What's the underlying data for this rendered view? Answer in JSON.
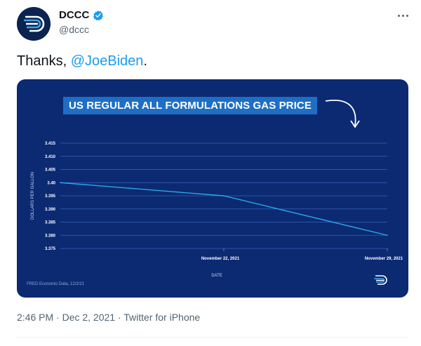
{
  "author": {
    "display_name": "DCCC",
    "handle": "@dccc",
    "verified": true,
    "avatar_icon": "dccc-logo-icon"
  },
  "tweet": {
    "text_prefix": "Thanks, ",
    "mention": "@JoeBiden",
    "text_suffix": ".",
    "timestamp": "2:46 PM · Dec 2, 2021 · Twitter for iPhone"
  },
  "colors": {
    "verified_badge": "#1d9bf0",
    "mention": "#1d9bf0",
    "chart_bg": "#0b2a72",
    "title_bg": "#1e6fc4",
    "series_line": "#2aa6e8"
  },
  "media": {
    "source_note": "FRED Economic Data, 12/2/21",
    "chart_data": {
      "type": "line",
      "title": "US REGULAR ALL FORMULATIONS GAS PRICE",
      "xlabel": "DATE",
      "ylabel": "DOLLARS PER GALLON",
      "x_ticks": [
        "November 22, 2021",
        "November 29, 2021"
      ],
      "y_ticks": [
        "3.415",
        "3.410",
        "3.405",
        "3.40",
        "3.395",
        "3.390",
        "3.385",
        "3.380",
        "3.375"
      ],
      "ylim": [
        3.375,
        3.415
      ],
      "grid": true,
      "series": [
        {
          "x": [
            "2021-11-15",
            "2021-11-22",
            "2021-11-29"
          ],
          "values": [
            3.4,
            3.395,
            3.38
          ]
        }
      ]
    }
  }
}
